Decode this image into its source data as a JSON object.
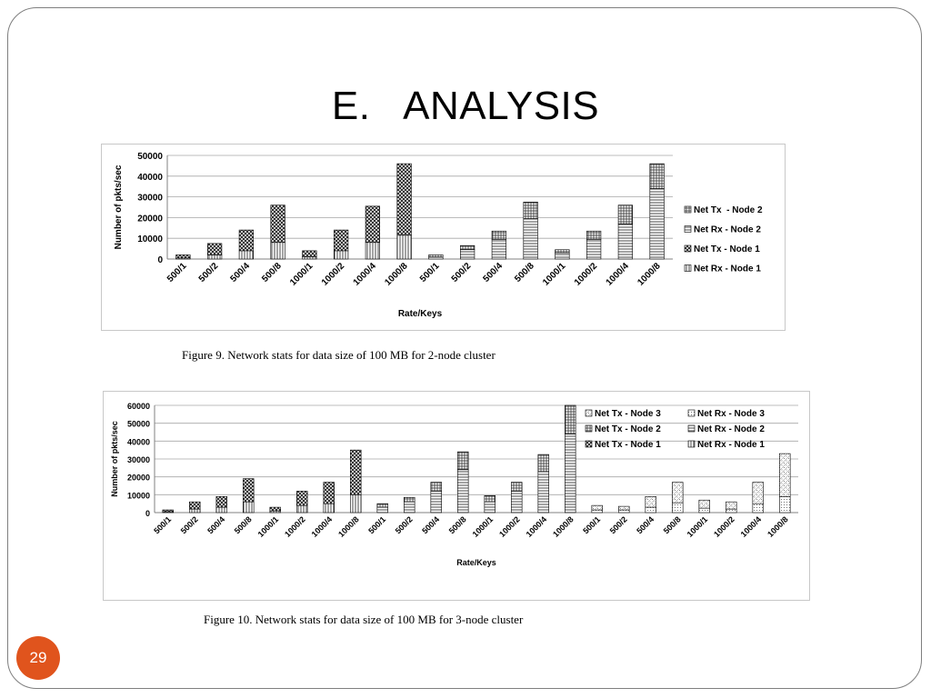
{
  "slide": {
    "title": "E.   ANALYSIS",
    "page_number": "29",
    "caption1": "Figure 9. Network stats for data size of 100 MB for 2-node cluster",
    "caption2": "Figure 10. Network stats for data size of 100 MB for 3-node cluster",
    "accent_color": "#e0541d"
  },
  "chart_data": [
    {
      "type": "bar",
      "stacked": true,
      "categories": [
        "500/1",
        "500/2",
        "500/4",
        "500/8",
        "1000/1",
        "1000/2",
        "1000/4",
        "1000/8",
        "500/1",
        "500/2",
        "500/4",
        "500/8",
        "1000/1",
        "1000/2",
        "1000/4",
        "1000/8"
      ],
      "xlabel": "Rate/Keys",
      "ylabel": "Number of pkts/sec",
      "ylim": [
        0,
        50000
      ],
      "yticks": [
        "0",
        "10000",
        "20000",
        "30000",
        "40000",
        "50000"
      ],
      "grid": true,
      "legend_position": "right",
      "legend_order": [
        "Net Tx  - Node 2",
        "Net Rx - Node 2",
        "Net Tx - Node 1",
        "Net Rx - Node 1"
      ],
      "series": [
        {
          "name": "Net Rx - Node 1",
          "pattern": "vlines",
          "values": [
            500,
            2000,
            4000,
            8000,
            1000,
            4000,
            8000,
            11500,
            0,
            0,
            0,
            0,
            0,
            0,
            0,
            0
          ]
        },
        {
          "name": "Net Tx - Node 1",
          "pattern": "cross",
          "values": [
            1500,
            5500,
            10000,
            18000,
            3000,
            10000,
            17500,
            34500,
            0,
            0,
            0,
            0,
            0,
            0,
            0,
            0
          ]
        },
        {
          "name": "Net Rx - Node 2",
          "pattern": "hlines",
          "values": [
            0,
            0,
            0,
            0,
            0,
            0,
            0,
            0,
            1000,
            4500,
            9500,
            19500,
            3000,
            9500,
            17000,
            34000
          ]
        },
        {
          "name": "Net Tx  - Node 2",
          "pattern": "grid",
          "values": [
            0,
            0,
            0,
            0,
            0,
            0,
            0,
            0,
            1000,
            2000,
            4000,
            8000,
            1500,
            4000,
            9000,
            12000
          ]
        }
      ]
    },
    {
      "type": "bar",
      "stacked": true,
      "categories": [
        "500/1",
        "500/2",
        "500/4",
        "500/8",
        "1000/1",
        "1000/2",
        "1000/4",
        "1000/8",
        "500/1",
        "500/2",
        "500/4",
        "500/8",
        "1000/1",
        "1000/2",
        "1000/4",
        "1000/8",
        "500/1",
        "500/2",
        "500/4",
        "500/8",
        "1000/1",
        "1000/2",
        "1000/4",
        "1000/8"
      ],
      "xlabel": "Rate/Keys",
      "ylabel": "Number of pkts/sec",
      "ylim": [
        0,
        60000
      ],
      "yticks": [
        "0",
        "10000",
        "20000",
        "30000",
        "40000",
        "50000",
        "60000"
      ],
      "grid": true,
      "legend_position": "top-right",
      "legend_order": [
        "Net Tx - Node 3",
        "Net Rx - Node 3",
        "Net Tx - Node 2",
        "Net Rx - Node 2",
        "Net Tx - Node 1",
        "Net Rx - Node 1"
      ],
      "series": [
        {
          "name": "Net Rx - Node 1",
          "pattern": "vlines",
          "values": [
            500,
            2000,
            3000,
            6000,
            1000,
            4000,
            5000,
            10000,
            0,
            0,
            0,
            0,
            0,
            0,
            0,
            0,
            0,
            0,
            0,
            0,
            0,
            0,
            0,
            0
          ]
        },
        {
          "name": "Net Tx - Node 1",
          "pattern": "cross",
          "values": [
            1000,
            4000,
            6000,
            13000,
            2000,
            8000,
            12000,
            25000,
            0,
            0,
            0,
            0,
            0,
            0,
            0,
            0,
            0,
            0,
            0,
            0,
            0,
            0,
            0,
            0
          ]
        },
        {
          "name": "Net Rx - Node 2",
          "pattern": "hlines",
          "values": [
            0,
            0,
            0,
            0,
            0,
            0,
            0,
            0,
            3000,
            6000,
            12000,
            24000,
            6000,
            12000,
            23000,
            44000,
            0,
            0,
            0,
            0,
            0,
            0,
            0,
            0
          ]
        },
        {
          "name": "Net Tx - Node 2",
          "pattern": "grid",
          "values": [
            0,
            0,
            0,
            0,
            0,
            0,
            0,
            0,
            2000,
            2500,
            5000,
            10000,
            3500,
            5000,
            9500,
            16000,
            0,
            0,
            0,
            0,
            0,
            0,
            0,
            0
          ]
        },
        {
          "name": "Net Rx - Node 3",
          "pattern": "dots",
          "values": [
            0,
            0,
            0,
            0,
            0,
            0,
            0,
            0,
            0,
            0,
            0,
            0,
            0,
            0,
            0,
            0,
            1500,
            1500,
            3000,
            5500,
            2500,
            2000,
            5000,
            9000
          ]
        },
        {
          "name": "Net Tx - Node 3",
          "pattern": "dotslash",
          "values": [
            0,
            0,
            0,
            0,
            0,
            0,
            0,
            0,
            0,
            0,
            0,
            0,
            0,
            0,
            0,
            0,
            2500,
            2000,
            6000,
            11500,
            4500,
            4000,
            12000,
            24000
          ]
        }
      ]
    }
  ]
}
